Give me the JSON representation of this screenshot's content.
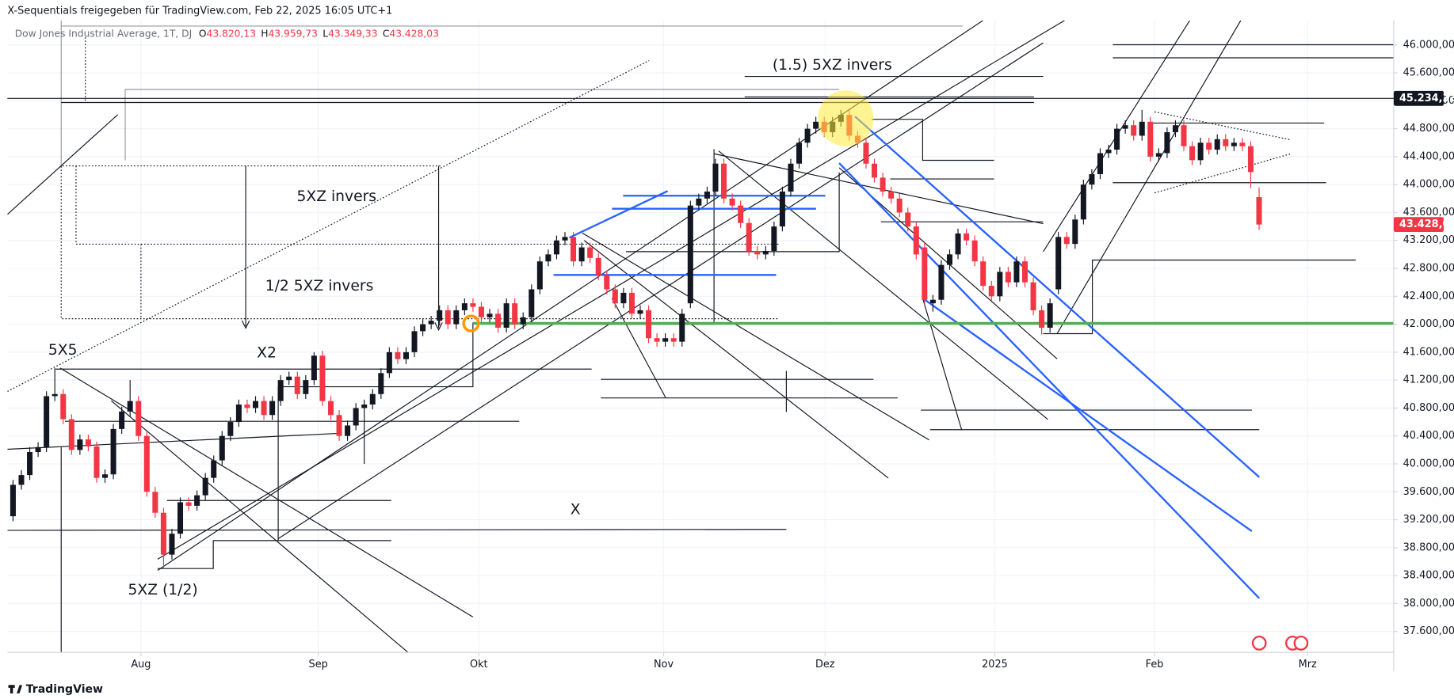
{
  "header": {
    "share_line": "X-Sequentials freigegeben für TradingView.com, Feb 22, 2025 16:05 UTC+1",
    "symbol": "Dow Jones Industrial Average, 1T, DJ",
    "ohlc": [
      {
        "key": "O",
        "value": "43.820,13"
      },
      {
        "key": "H",
        "value": "43.959,73"
      },
      {
        "key": "L",
        "value": "43.349,33"
      },
      {
        "key": "C",
        "value": "43.428,03"
      }
    ]
  },
  "footer": {
    "brand": "TradingView"
  },
  "chart_data": {
    "type": "candlestick",
    "up_color": "#131722",
    "down_color": "#f23645",
    "grid": true,
    "xlim": [
      -0.67,
      165.1
    ],
    "xticks": [
      {
        "value": 15.3,
        "label": "Aug"
      },
      {
        "value": 36.5,
        "label": "Sep"
      },
      {
        "value": 55.7,
        "label": "Okt"
      },
      {
        "value": 77.8,
        "label": "Nov"
      },
      {
        "value": 97.1,
        "label": "Dez"
      },
      {
        "value": 117.4,
        "label": "2025"
      },
      {
        "value": 136.5,
        "label": "Feb"
      },
      {
        "value": 154.8,
        "label": "Mrz"
      }
    ],
    "ylim": [
      37300,
      46350
    ],
    "yticks": [
      {
        "value": 37600,
        "label": "37.600,00"
      },
      {
        "value": 38000,
        "label": "38.000,00"
      },
      {
        "value": 38400,
        "label": "38.400,00"
      },
      {
        "value": 38800,
        "label": "38.800,00"
      },
      {
        "value": 39200,
        "label": "39.200,00"
      },
      {
        "value": 39600,
        "label": "39.600,00"
      },
      {
        "value": 40000,
        "label": "40.000,00"
      },
      {
        "value": 40400,
        "label": "40.400,00"
      },
      {
        "value": 40800,
        "label": "40.800,00"
      },
      {
        "value": 41200,
        "label": "41.200,00"
      },
      {
        "value": 41600,
        "label": "41.600,00"
      },
      {
        "value": 42000,
        "label": "42.000,00"
      },
      {
        "value": 42400,
        "label": "42.400,00"
      },
      {
        "value": 42800,
        "label": "42.800,00"
      },
      {
        "value": 43200,
        "label": "43.200,00"
      },
      {
        "value": 43600,
        "label": "43.600,00"
      },
      {
        "value": 44000,
        "label": "44.000,00"
      },
      {
        "value": 44400,
        "label": "44.400,00"
      },
      {
        "value": 44800,
        "label": "44.800,00"
      },
      {
        "value": 45200,
        "label": "45.200,00"
      },
      {
        "value": 45600,
        "label": "45.600,00"
      },
      {
        "value": 46000,
        "label": "46.000,00"
      }
    ],
    "price_lines": [
      {
        "value": 45234.33,
        "label": "45.234,33",
        "color": "#131722"
      }
    ],
    "last_price_label": "43.428,03",
    "annotations": [
      "5X5",
      "X2",
      "5XZ invers",
      "1/2 5XZ invers",
      "(1.5) 5XZ invers",
      "X",
      "5XZ (1/2)"
    ],
    "candles": [
      [
        39250,
        39770,
        39180,
        39700
      ],
      [
        39700,
        39910,
        39630,
        39840
      ],
      [
        39840,
        40240,
        39770,
        40170
      ],
      [
        40170,
        40310,
        40100,
        40240
      ],
      [
        40240,
        41040,
        40170,
        40970
      ],
      [
        40970,
        41370,
        40900,
        41000
      ],
      [
        41000,
        41070,
        40570,
        40640
      ],
      [
        40640,
        40710,
        40130,
        40200
      ],
      [
        40200,
        40420,
        40130,
        40350
      ],
      [
        40350,
        40420,
        40180,
        40250
      ],
      [
        40250,
        40320,
        39730,
        39800
      ],
      [
        39800,
        39920,
        39730,
        39850
      ],
      [
        39850,
        40570,
        39780,
        40500
      ],
      [
        40500,
        40820,
        40430,
        40750
      ],
      [
        40750,
        41200,
        40680,
        40900
      ],
      [
        40900,
        40970,
        40330,
        40400
      ],
      [
        40400,
        40470,
        39530,
        39600
      ],
      [
        39600,
        39670,
        39230,
        39300
      ],
      [
        39300,
        39370,
        38500,
        38700
      ],
      [
        38700,
        39070,
        38630,
        39000
      ],
      [
        39000,
        39520,
        38930,
        39450
      ],
      [
        39450,
        39520,
        39330,
        39400
      ],
      [
        39400,
        39620,
        39330,
        39550
      ],
      [
        39550,
        39870,
        39480,
        39800
      ],
      [
        39800,
        40120,
        39730,
        40050
      ],
      [
        40050,
        40470,
        39980,
        40400
      ],
      [
        40400,
        40670,
        40330,
        40600
      ],
      [
        40600,
        40920,
        40530,
        40850
      ],
      [
        40850,
        40920,
        40730,
        40800
      ],
      [
        40800,
        40970,
        40730,
        40900
      ],
      [
        40900,
        40970,
        40630,
        40700
      ],
      [
        40700,
        40970,
        40630,
        40900
      ],
      [
        40900,
        41270,
        40830,
        41200
      ],
      [
        41200,
        41320,
        41130,
        41250
      ],
      [
        41250,
        41320,
        40930,
        41000
      ],
      [
        41000,
        41270,
        40930,
        41200
      ],
      [
        41200,
        41600,
        41130,
        41550
      ],
      [
        41550,
        41620,
        40830,
        40900
      ],
      [
        40900,
        40970,
        40630,
        40700
      ],
      [
        40700,
        40770,
        40330,
        40400
      ],
      [
        40400,
        40620,
        40330,
        40550
      ],
      [
        40550,
        40870,
        40480,
        40800
      ],
      [
        40800,
        40920,
        40000,
        40850
      ],
      [
        40850,
        41070,
        40780,
        41000
      ],
      [
        41000,
        41370,
        40930,
        41300
      ],
      [
        41300,
        41670,
        41230,
        41600
      ],
      [
        41600,
        41670,
        41430,
        41500
      ],
      [
        41500,
        41670,
        41430,
        41600
      ],
      [
        41600,
        41970,
        41530,
        41900
      ],
      [
        41900,
        42070,
        41830,
        42000
      ],
      [
        42000,
        42120,
        41930,
        42050
      ],
      [
        42050,
        42270,
        41980,
        42200
      ],
      [
        42200,
        42270,
        41930,
        42000
      ],
      [
        42000,
        42270,
        41930,
        42200
      ],
      [
        42200,
        42370,
        42130,
        42300
      ],
      [
        42300,
        42370,
        42180,
        42250
      ],
      [
        42250,
        42320,
        42030,
        42100
      ],
      [
        42100,
        42220,
        42030,
        42150
      ],
      [
        42150,
        42220,
        41880,
        41950
      ],
      [
        41950,
        42370,
        41880,
        42300
      ],
      [
        42300,
        42370,
        41930,
        42000
      ],
      [
        42000,
        42170,
        41930,
        42100
      ],
      [
        42100,
        42570,
        42030,
        42500
      ],
      [
        42500,
        42970,
        42430,
        42900
      ],
      [
        42900,
        43070,
        42830,
        43000
      ],
      [
        43000,
        43270,
        42930,
        43200
      ],
      [
        43200,
        43320,
        43130,
        43250
      ],
      [
        43250,
        43320,
        42830,
        42900
      ],
      [
        42900,
        43170,
        42830,
        43100
      ],
      [
        43100,
        43170,
        42880,
        42950
      ],
      [
        42950,
        43020,
        42630,
        42700
      ],
      [
        42700,
        42770,
        42430,
        42500
      ],
      [
        42500,
        42570,
        42230,
        42300
      ],
      [
        42300,
        42520,
        42230,
        42450
      ],
      [
        42450,
        42520,
        42080,
        42150
      ],
      [
        42150,
        42270,
        42080,
        42200
      ],
      [
        42200,
        42270,
        41730,
        41800
      ],
      [
        41800,
        41870,
        41680,
        41750
      ],
      [
        41750,
        41870,
        41680,
        41800
      ],
      [
        41800,
        41870,
        41680,
        41750
      ],
      [
        41750,
        42220,
        41680,
        42150
      ],
      [
        42300,
        43770,
        42230,
        43700
      ],
      [
        43700,
        43870,
        43630,
        43800
      ],
      [
        43800,
        43970,
        43730,
        43900
      ],
      [
        43900,
        44370,
        43830,
        44300
      ],
      [
        44300,
        44370,
        43730,
        43800
      ],
      [
        43800,
        43870,
        43630,
        43700
      ],
      [
        43700,
        43770,
        43380,
        43450
      ],
      [
        43450,
        43520,
        42980,
        43050
      ],
      [
        43050,
        43120,
        42930,
        43000
      ],
      [
        43000,
        43120,
        42930,
        43050
      ],
      [
        43050,
        43470,
        42980,
        43400
      ],
      [
        43400,
        43970,
        43330,
        43900
      ],
      [
        43900,
        44370,
        43830,
        44300
      ],
      [
        44300,
        44670,
        44230,
        44600
      ],
      [
        44600,
        44870,
        44530,
        44800
      ],
      [
        44800,
        44970,
        44730,
        44900
      ],
      [
        44900,
        44970,
        44680,
        44750
      ],
      [
        44750,
        44970,
        44680,
        44900
      ],
      [
        44900,
        45070,
        44830,
        45000
      ],
      [
        45000,
        45070,
        44630,
        44700
      ],
      [
        44700,
        44770,
        44530,
        44600
      ],
      [
        44600,
        44670,
        44230,
        44300
      ],
      [
        44300,
        44370,
        44030,
        44100
      ],
      [
        44100,
        44170,
        43830,
        43900
      ],
      [
        43900,
        43970,
        43730,
        43800
      ],
      [
        43800,
        43870,
        43530,
        43600
      ],
      [
        43600,
        43670,
        43330,
        43400
      ],
      [
        43400,
        43470,
        42930,
        43000
      ],
      [
        43100,
        43170,
        42280,
        42350
      ],
      [
        42300,
        42420,
        42180,
        42350
      ],
      [
        42350,
        42920,
        42280,
        42850
      ],
      [
        42850,
        43070,
        42780,
        43000
      ],
      [
        43000,
        43370,
        42930,
        43300
      ],
      [
        43300,
        43370,
        43130,
        43200
      ],
      [
        43200,
        43270,
        42830,
        42900
      ],
      [
        42900,
        42970,
        42480,
        42550
      ],
      [
        42550,
        42620,
        42330,
        42400
      ],
      [
        42400,
        42820,
        42330,
        42750
      ],
      [
        42750,
        42820,
        42530,
        42600
      ],
      [
        42600,
        42970,
        42530,
        42900
      ],
      [
        42900,
        42970,
        42530,
        42600
      ],
      [
        42600,
        42670,
        42130,
        42200
      ],
      [
        42200,
        42270,
        41850,
        41950
      ],
      [
        41950,
        42370,
        41880,
        42300
      ],
      [
        42500,
        43320,
        42430,
        43250
      ],
      [
        43250,
        43320,
        43080,
        43150
      ],
      [
        43150,
        43570,
        43080,
        43500
      ],
      [
        43500,
        44070,
        43430,
        44000
      ],
      [
        44000,
        44220,
        43930,
        44150
      ],
      [
        44150,
        44520,
        44080,
        44450
      ],
      [
        44450,
        44570,
        44380,
        44500
      ],
      [
        44500,
        44870,
        44430,
        44800
      ],
      [
        44800,
        44920,
        44730,
        44850
      ],
      [
        44850,
        44920,
        44630,
        44700
      ],
      [
        44700,
        45070,
        44630,
        44900
      ],
      [
        44900,
        44970,
        44330,
        44400
      ],
      [
        44400,
        44520,
        44330,
        44450
      ],
      [
        44450,
        44820,
        44380,
        44750
      ],
      [
        44750,
        44920,
        44680,
        44850
      ],
      [
        44850,
        44920,
        44480,
        44550
      ],
      [
        44550,
        44620,
        44280,
        44350
      ],
      [
        44350,
        44670,
        44280,
        44600
      ],
      [
        44600,
        44670,
        44430,
        44500
      ],
      [
        44500,
        44720,
        44430,
        44650
      ],
      [
        44650,
        44720,
        44480,
        44550
      ],
      [
        44550,
        44670,
        44480,
        44600
      ],
      [
        44600,
        44670,
        44480,
        44550
      ],
      [
        44550,
        44620,
        43950,
        44180
      ],
      [
        43820.13,
        43959.73,
        43349.33,
        43428.03
      ]
    ]
  }
}
